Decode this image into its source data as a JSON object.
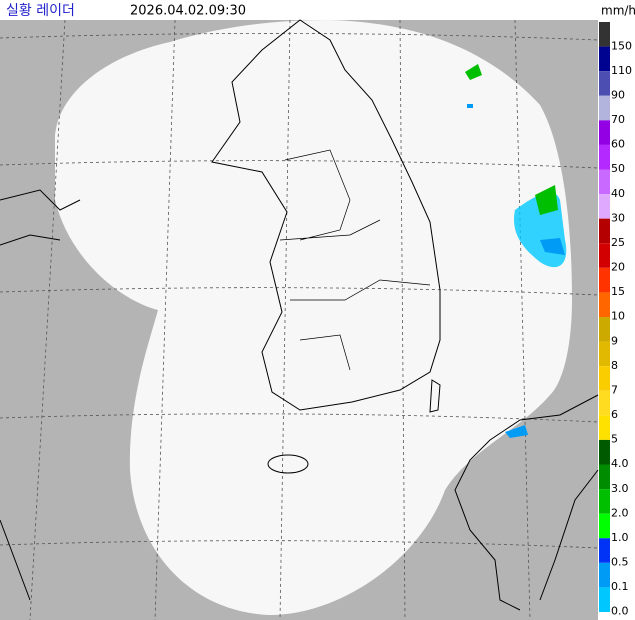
{
  "header": {
    "title": "실황 레이더",
    "timestamp": "2026.04.02.09:30",
    "unit": "mm/h"
  },
  "legend": {
    "labels": [
      "150",
      "110",
      "90",
      "70",
      "60",
      "50",
      "40",
      "30",
      "25",
      "20",
      "15",
      "10",
      "9",
      "8",
      "7",
      "6",
      "5",
      "4.0",
      "3.0",
      "2.0",
      "1.0",
      "0.5",
      "0.1",
      "0.0"
    ],
    "colors": [
      "#333333",
      "#000390",
      "#4c4eb1",
      "#b3b4de",
      "#9300e4",
      "#b329ff",
      "#c969ff",
      "#dfa9ff",
      "#b40000",
      "#d20000",
      "#ff3300",
      "#ff6600",
      "#ccaa00",
      "#e0b900",
      "#f9cd00",
      "#ffdc1f",
      "#ffe100",
      "#005a00",
      "#008c00",
      "#00be00",
      "#00ff00",
      "#0033f5",
      "#009bf5",
      "#00c8ff"
    ]
  }
}
